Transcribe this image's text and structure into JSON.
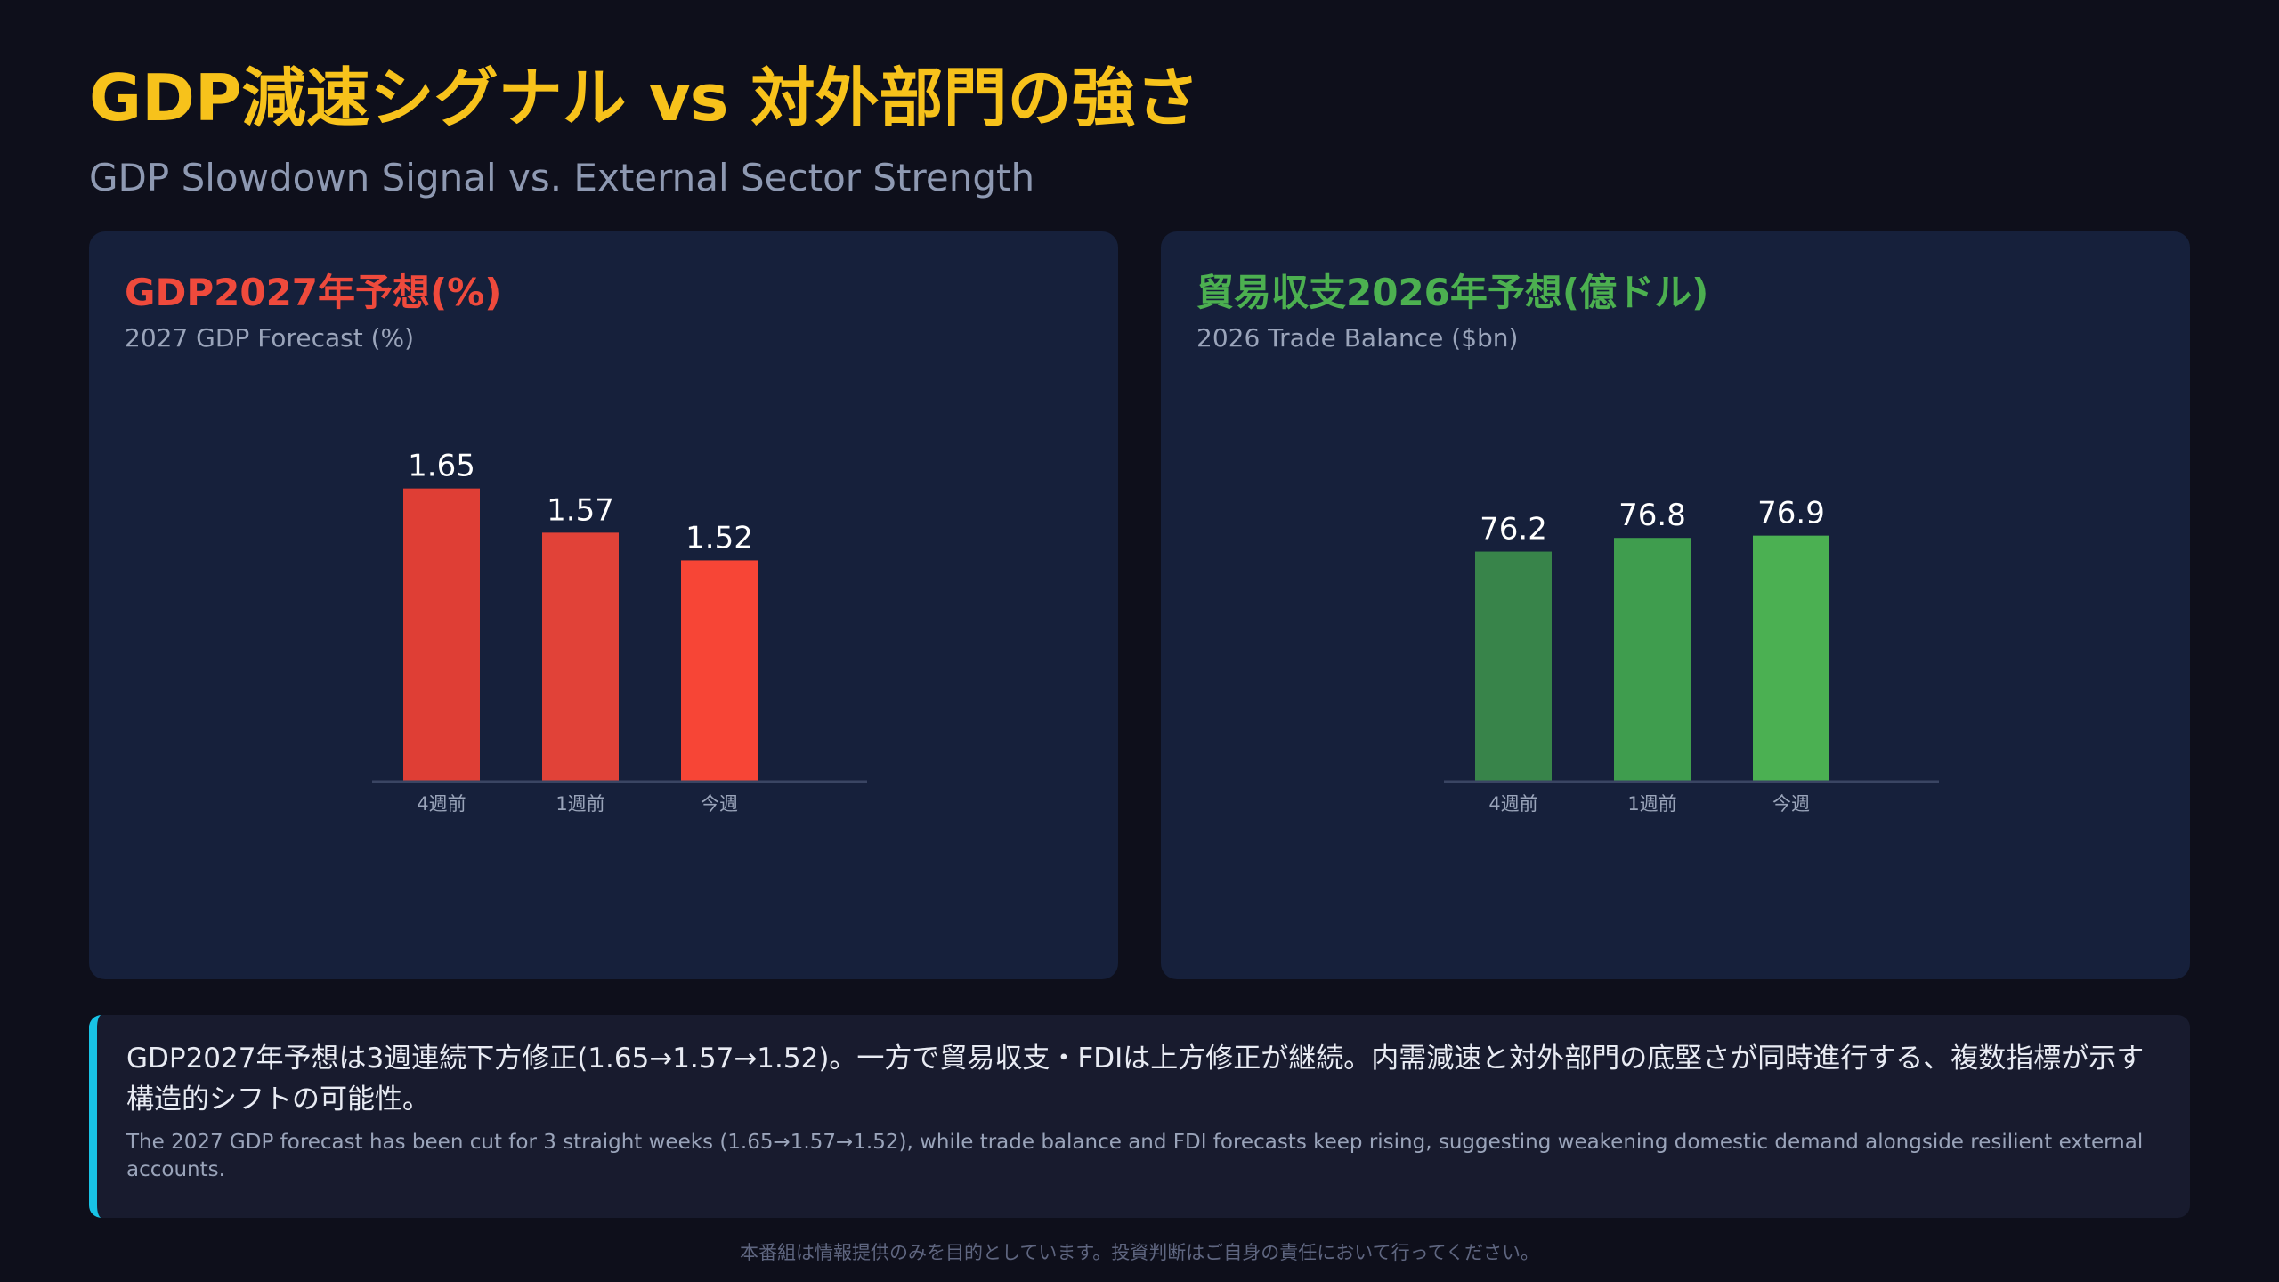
{
  "header": {
    "title": "GDP減速シグナル vs 対外部門の強さ",
    "subtitle": "GDP Slowdown Signal vs. External Sector Strength"
  },
  "panels": [
    {
      "title": "GDP2027年予想(%)",
      "subtitle": "2027 GDP Forecast (%)",
      "title_color": "#ef4a3c"
    },
    {
      "title": "貿易収支2026年予想(億ドル)",
      "subtitle": "2026 Trade Balance ($bn)",
      "title_color": "#4cb050"
    }
  ],
  "chart_data": [
    {
      "type": "bar",
      "title": "GDP2027年予想(%)",
      "subtitle": "2027 GDP Forecast (%)",
      "categories": [
        "4週前",
        "1週前",
        "今週"
      ],
      "values": [
        1.65,
        1.57,
        1.52
      ],
      "value_labels": [
        "1.65",
        "1.57",
        "1.52"
      ],
      "colors": [
        "#df3e35",
        "#e14238",
        "#f74536"
      ],
      "ylim": [
        1.12,
        1.68
      ],
      "grid": false,
      "legend": "none"
    },
    {
      "type": "bar",
      "title": "貿易収支2026年予想(億ドル)",
      "subtitle": "2026 Trade Balance ($bn)",
      "categories": [
        "4週前",
        "1週前",
        "今週"
      ],
      "values": [
        76.2,
        76.8,
        76.9
      ],
      "value_labels": [
        "76.2",
        "76.8",
        "76.9"
      ],
      "colors": [
        "#38844a",
        "#3f9d4e",
        "#4bb052"
      ],
      "ylim": [
        66.1,
        79.7
      ],
      "grid": false,
      "legend": "none"
    }
  ],
  "insight": {
    "ja": "GDP2027年予想は3週連続下方修正(1.65→1.57→1.52)。一方で貿易収支・FDIは上方修正が継続。内需減速と対外部門の底堅さが同時進行する、複数指標が示す構造的シフトの可能性。",
    "en": "The 2027 GDP forecast has been cut for 3 straight weeks (1.65→1.57→1.52), while trade balance and FDI forecasts keep rising, suggesting weakening domestic demand alongside resilient external accounts.",
    "accent_color": "#18c3e6"
  },
  "disclaimer": "本番組は情報提供のみを目的としています。投資判断はご自身の責任において行ってください。"
}
